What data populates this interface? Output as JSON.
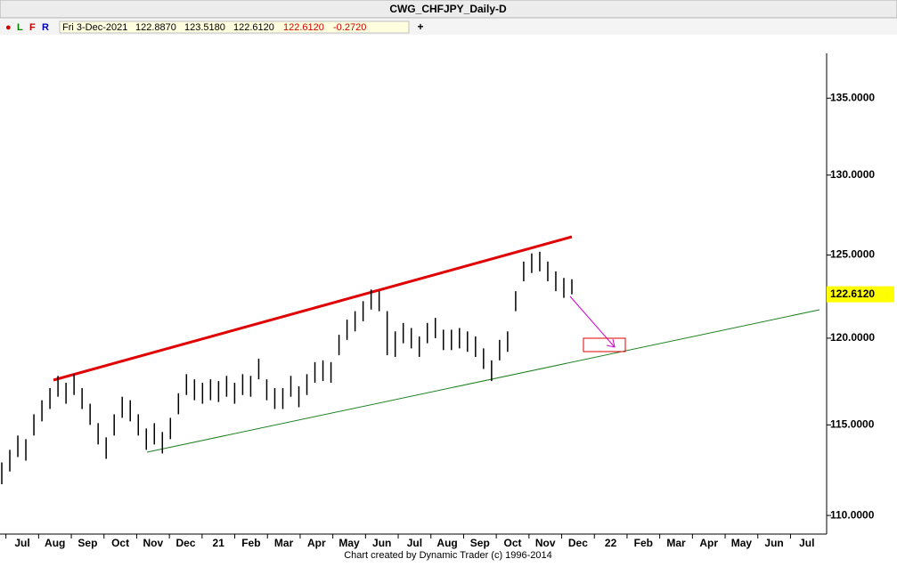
{
  "chart_data": {
    "type": "range",
    "title": "CWG_CHFJPY_Daily-D",
    "toolbar": {
      "buttons": [
        "●",
        "L",
        "F",
        "R"
      ],
      "info": [
        "Fri 3-Dec-2021",
        "122.8870",
        "123.5180",
        "122.6120",
        "122.6120",
        "-0.2720"
      ],
      "add": "+"
    },
    "footer": "Chart created by Dynamic Trader  (c) 1996-2014",
    "x_axis_labels": [
      "Jul",
      "Aug",
      "Sep",
      "Oct",
      "Nov",
      "Dec",
      "21",
      "Feb",
      "Mar",
      "Apr",
      "May",
      "Jun",
      "Jul",
      "Aug",
      "Sep",
      "Oct",
      "Nov",
      "Dec",
      "22",
      "Feb",
      "Mar",
      "Apr",
      "May",
      "Jun",
      "Jul"
    ],
    "log_scale": true,
    "ylim": [
      109,
      138
    ],
    "yticks": [
      {
        "value": 110,
        "label": "110.0000"
      },
      {
        "value": 115,
        "label": "115.0000"
      },
      {
        "value": 120,
        "label": "120.0000"
      },
      {
        "value": 125,
        "label": "125.0000"
      },
      {
        "value": 130,
        "label": "130.0000"
      },
      {
        "value": 135,
        "label": "135.0000"
      }
    ],
    "last_price": {
      "value": 122.612,
      "label": "122.6120"
    },
    "color": "#000000",
    "high": [
      112.9,
      113.6,
      114.4,
      114.2,
      115.6,
      116.4,
      117.1,
      117.8,
      117.4,
      117.9,
      117.1,
      116.2,
      115.1,
      114.3,
      115.6,
      116.6,
      116.4,
      115.6,
      114.8,
      115.1,
      114.6,
      115.4,
      116.8,
      117.9,
      117.6,
      117.4,
      117.6,
      117.5,
      117.8,
      117.4,
      117.9,
      117.8,
      118.8,
      117.6,
      117.1,
      117.1,
      117.8,
      117.2,
      117.9,
      118.6,
      118.7,
      118.6,
      120.2,
      121.1,
      121.6,
      122.2,
      122.9,
      122.8,
      121.6,
      120.4,
      120.9,
      120.6,
      120.1,
      120.9,
      121.2,
      120.5,
      120.5,
      120.6,
      120.4,
      120.1,
      119.4,
      118.7,
      119.9,
      120.4,
      122.8,
      124.6,
      125.1,
      125.2,
      124.6,
      124,
      123.6,
      123.52
    ],
    "low": [
      111.7,
      112.4,
      113.2,
      113,
      114.4,
      115.2,
      115.9,
      116.6,
      116.2,
      116.7,
      115.9,
      115,
      113.9,
      113.1,
      114.4,
      115.4,
      115.2,
      114.4,
      113.6,
      113.9,
      113.4,
      114.2,
      115.6,
      116.7,
      116.4,
      116.2,
      116.4,
      116.3,
      116.6,
      116.2,
      116.7,
      116.6,
      117.6,
      116.4,
      115.9,
      115.9,
      116.6,
      116,
      116.7,
      117.4,
      117.5,
      117.4,
      119,
      119.9,
      120.4,
      121,
      121.7,
      121.6,
      119,
      118.9,
      119.7,
      119.4,
      118.9,
      119.7,
      120,
      119.3,
      119.3,
      119.4,
      119.2,
      118.9,
      118.2,
      117.5,
      118.7,
      119.2,
      121.6,
      123.4,
      123.9,
      124,
      123.4,
      122.8,
      122.4,
      122.612
    ]
  }
}
